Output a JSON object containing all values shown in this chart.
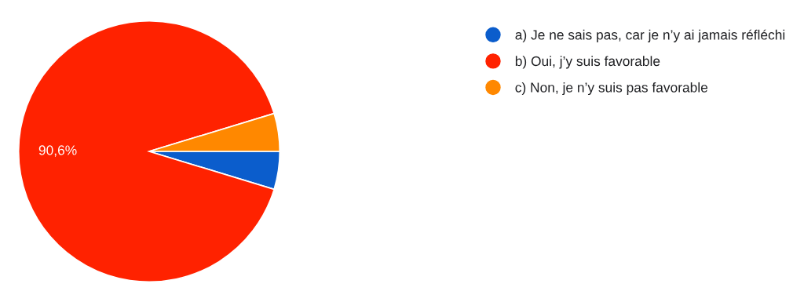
{
  "chart_data": {
    "type": "pie",
    "categories": [
      "a) Je ne sais pas, car je n’y ai jamais réfléchi",
      "b) Oui, j’y suis favorable",
      "c) Non, je n’y suis pas favorable"
    ],
    "values": [
      4.7,
      90.6,
      4.7
    ],
    "colors": [
      "#0b5dcc",
      "#ff2200",
      "#ff8800"
    ],
    "value_labels": [
      null,
      "90,6%",
      null
    ],
    "legend": "top right"
  }
}
